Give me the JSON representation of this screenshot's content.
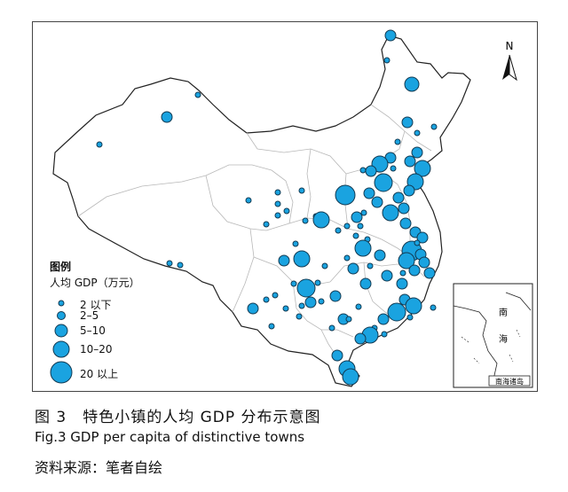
{
  "caption": {
    "chinese": "图 3　特色小镇的人均 GDP 分布示意图",
    "english": "Fig.3   GDP per capita of distinctive towns"
  },
  "source": "资料来源：笔者自绘",
  "legend": {
    "title": "图例",
    "subtitle": "人均 GDP（万元）",
    "classes": [
      {
        "label": "2 以下"
      },
      {
        "label": "2–5"
      },
      {
        "label": "5–10"
      },
      {
        "label": "10–20"
      },
      {
        "label": "20 以上"
      }
    ]
  },
  "north_label": "N",
  "inset": {
    "title": "南海诸岛",
    "label_1": "南",
    "label_2": "海"
  },
  "colors": {
    "marker_fill": "#1aa3e0",
    "marker_stroke": "#123a52",
    "boundary": "#b8b8b8",
    "outline": "#222222"
  }
}
